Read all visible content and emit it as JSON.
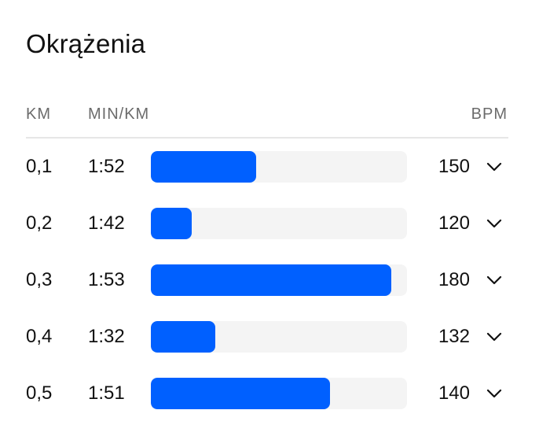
{
  "title": "Okrążenia",
  "columns": {
    "km": "KM",
    "pace": "MIN/KM",
    "bpm": "BPM"
  },
  "accent_color": "#0060ff",
  "track_color": "#f4f4f4",
  "laps": [
    {
      "km": "0,1",
      "pace": "1:52",
      "bpm": "150",
      "bar_fraction": 0.41,
      "icon": "chevron-down-icon"
    },
    {
      "km": "0,2",
      "pace": "1:42",
      "bpm": "120",
      "bar_fraction": 0.16,
      "icon": "chevron-down-icon"
    },
    {
      "km": "0,3",
      "pace": "1:53",
      "bpm": "180",
      "bar_fraction": 0.94,
      "icon": "chevron-down-icon"
    },
    {
      "km": "0,4",
      "pace": "1:32",
      "bpm": "132",
      "bar_fraction": 0.25,
      "icon": "chevron-down-icon"
    },
    {
      "km": "0,5",
      "pace": "1:51",
      "bpm": "140",
      "bar_fraction": 0.7,
      "icon": "chevron-down-icon"
    }
  ]
}
